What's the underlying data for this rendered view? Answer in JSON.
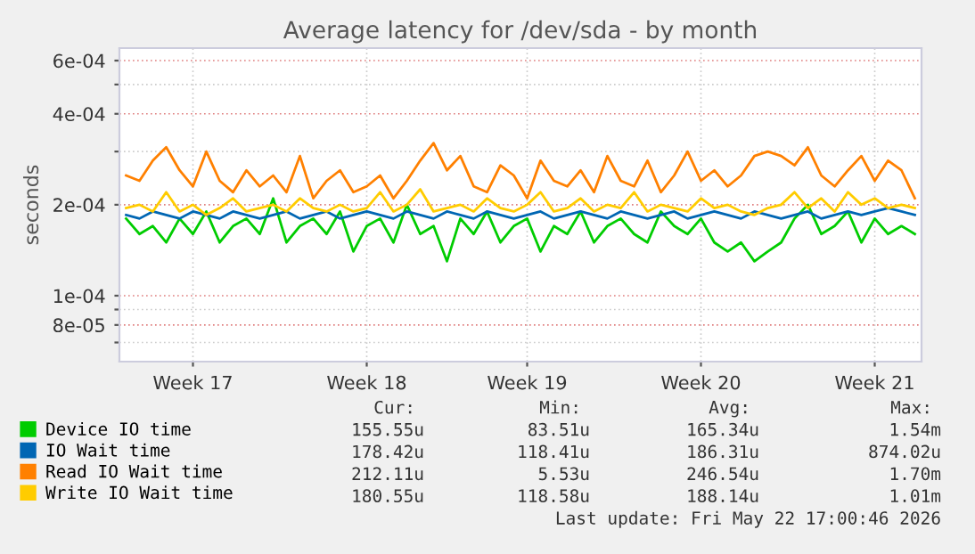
{
  "chart_data": {
    "type": "line",
    "title": "Average latency for /dev/sda - by month",
    "ylabel": "seconds",
    "log": "y",
    "grid": true,
    "legend": "bottom",
    "marker": "none",
    "line_style": "solid",
    "ylim": [
      6.05e-05,
      0.00066
    ],
    "yticks": [
      {
        "value": 7e-05,
        "label": null
      },
      {
        "value": 8e-05,
        "label": "8e-05"
      },
      {
        "value": 9e-05,
        "label": null
      },
      {
        "value": 0.0001,
        "label": "1e-04"
      },
      {
        "value": 0.0002,
        "label": "2e-04"
      },
      {
        "value": 0.0003,
        "label": null
      },
      {
        "value": 0.0004,
        "label": "4e-04"
      },
      {
        "value": 0.0005,
        "label": null
      },
      {
        "value": 0.0006,
        "label": "6e-04"
      }
    ],
    "categories": [
      null,
      null,
      null,
      null,
      null,
      "Week 17",
      null,
      null,
      null,
      null,
      null,
      null,
      null,
      null,
      null,
      null,
      null,
      null,
      "Week 18",
      null,
      null,
      null,
      null,
      null,
      null,
      null,
      null,
      null,
      null,
      null,
      "Week 19",
      null,
      null,
      null,
      null,
      null,
      null,
      null,
      null,
      null,
      null,
      null,
      null,
      "Week 20",
      null,
      null,
      null,
      null,
      null,
      null,
      null,
      null,
      null,
      null,
      null,
      null,
      "Week 21",
      null,
      null,
      null
    ],
    "series": [
      {
        "name": "Device IO time",
        "color": "#00cc00",
        "values": [
          0.00018,
          0.00016,
          0.00017,
          0.00015,
          0.00018,
          0.00016,
          0.00019,
          0.00015,
          0.00017,
          0.00018,
          0.00016,
          0.00021,
          0.00015,
          0.00017,
          0.00018,
          0.00016,
          0.00019,
          0.00014,
          0.00017,
          0.00018,
          0.00015,
          0.0002,
          0.00016,
          0.00017,
          0.00013,
          0.00018,
          0.00016,
          0.00019,
          0.00015,
          0.00017,
          0.00018,
          0.00014,
          0.00017,
          0.00016,
          0.00019,
          0.00015,
          0.00017,
          0.00018,
          0.00016,
          0.00015,
          0.00019,
          0.00017,
          0.00016,
          0.00018,
          0.00015,
          0.00014,
          0.00015,
          0.00013,
          0.00014,
          0.00015,
          0.00018,
          0.0002,
          0.00016,
          0.00017,
          0.00019,
          0.00015,
          0.00018,
          0.00016,
          0.00017,
          0.00016
        ]
      },
      {
        "name": "IO Wait time",
        "color": "#0066b3",
        "values": [
          0.000185,
          0.00018,
          0.00019,
          0.000185,
          0.00018,
          0.00019,
          0.000185,
          0.00018,
          0.00019,
          0.000185,
          0.00018,
          0.000185,
          0.00019,
          0.00018,
          0.000185,
          0.00019,
          0.00018,
          0.000185,
          0.00019,
          0.000185,
          0.00018,
          0.00019,
          0.000185,
          0.00018,
          0.00019,
          0.000185,
          0.00018,
          0.00019,
          0.000185,
          0.00018,
          0.000185,
          0.00019,
          0.00018,
          0.000185,
          0.00019,
          0.000185,
          0.00018,
          0.00019,
          0.000185,
          0.00018,
          0.000185,
          0.00019,
          0.00018,
          0.000185,
          0.00019,
          0.000185,
          0.00018,
          0.00019,
          0.000185,
          0.00018,
          0.000185,
          0.00019,
          0.00018,
          0.000185,
          0.00019,
          0.000185,
          0.00019,
          0.000195,
          0.00019,
          0.000185
        ]
      },
      {
        "name": "Read IO Wait time",
        "color": "#ff8000",
        "values": [
          0.00025,
          0.00024,
          0.00028,
          0.00031,
          0.00026,
          0.00023,
          0.0003,
          0.00024,
          0.00022,
          0.00026,
          0.00023,
          0.00025,
          0.00022,
          0.00029,
          0.00021,
          0.00024,
          0.00026,
          0.00022,
          0.00023,
          0.00025,
          0.00021,
          0.00024,
          0.00028,
          0.00032,
          0.00026,
          0.00029,
          0.00023,
          0.00022,
          0.00027,
          0.00025,
          0.00021,
          0.00028,
          0.00024,
          0.00023,
          0.00026,
          0.00022,
          0.00029,
          0.00024,
          0.00023,
          0.00028,
          0.00022,
          0.00025,
          0.0003,
          0.00024,
          0.00026,
          0.00023,
          0.00025,
          0.00029,
          0.0003,
          0.00029,
          0.00027,
          0.00031,
          0.00025,
          0.00023,
          0.00026,
          0.00029,
          0.00024,
          0.00028,
          0.00026,
          0.00021
        ]
      },
      {
        "name": "Write IO Wait time",
        "color": "#ffcc00",
        "values": [
          0.000195,
          0.0002,
          0.00019,
          0.00022,
          0.00019,
          0.0002,
          0.000185,
          0.000195,
          0.00021,
          0.00019,
          0.000195,
          0.0002,
          0.00019,
          0.00021,
          0.000195,
          0.00019,
          0.0002,
          0.00019,
          0.000195,
          0.00022,
          0.00019,
          0.0002,
          0.000225,
          0.00019,
          0.000195,
          0.0002,
          0.00019,
          0.00021,
          0.000195,
          0.00019,
          0.0002,
          0.00022,
          0.00019,
          0.000195,
          0.00021,
          0.00019,
          0.0002,
          0.000195,
          0.00022,
          0.00019,
          0.0002,
          0.000195,
          0.00019,
          0.00021,
          0.000195,
          0.0002,
          0.00019,
          0.000185,
          0.000195,
          0.0002,
          0.00022,
          0.000195,
          0.00021,
          0.00019,
          0.00022,
          0.0002,
          0.00021,
          0.000195,
          0.0002,
          0.000195
        ]
      }
    ],
    "annotations": [
      "Cur:",
      "Min:",
      "Avg:",
      "Max:",
      "155.55u",
      "83.51u",
      "165.34u",
      "1.54m",
      "178.42u",
      "118.41u",
      "186.31u",
      "874.02u",
      "212.11u",
      "5.53u",
      "246.54u",
      "1.70m",
      "180.55u",
      "118.58u",
      "188.14u",
      "1.01m",
      "Last update: Fri May 22 17:00:46 2026"
    ]
  }
}
